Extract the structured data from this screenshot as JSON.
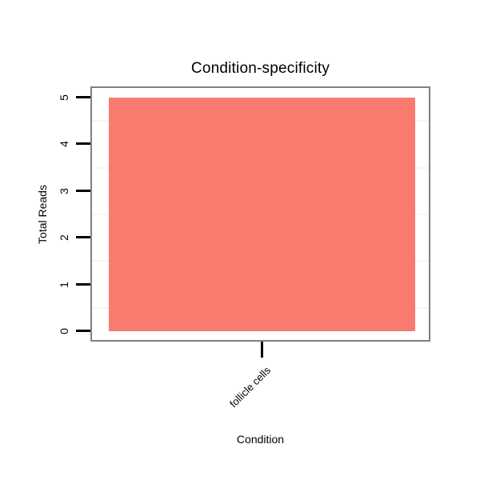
{
  "chart_data": {
    "type": "bar",
    "title": "Condition-specificity",
    "xlabel": "Condition",
    "ylabel": "Total Reads",
    "categories": [
      "follicle cells"
    ],
    "values": [
      5
    ],
    "ylim": [
      0,
      5
    ],
    "yticks": [
      0,
      1,
      2,
      3,
      4,
      5
    ],
    "minor_gridlines": [
      0.5,
      1.5,
      2.5,
      3.5,
      4.5
    ],
    "bar_color": "#F97B70",
    "frame_color": "#808080",
    "gridline_color": "#F6F6F6",
    "tick_color": "#000000",
    "text_color": "#000000",
    "background_color": "#FFFFFF",
    "legend": "none",
    "x_tick_label_rotation_deg": 45,
    "y_tick_label_rotation_deg": 90
  }
}
